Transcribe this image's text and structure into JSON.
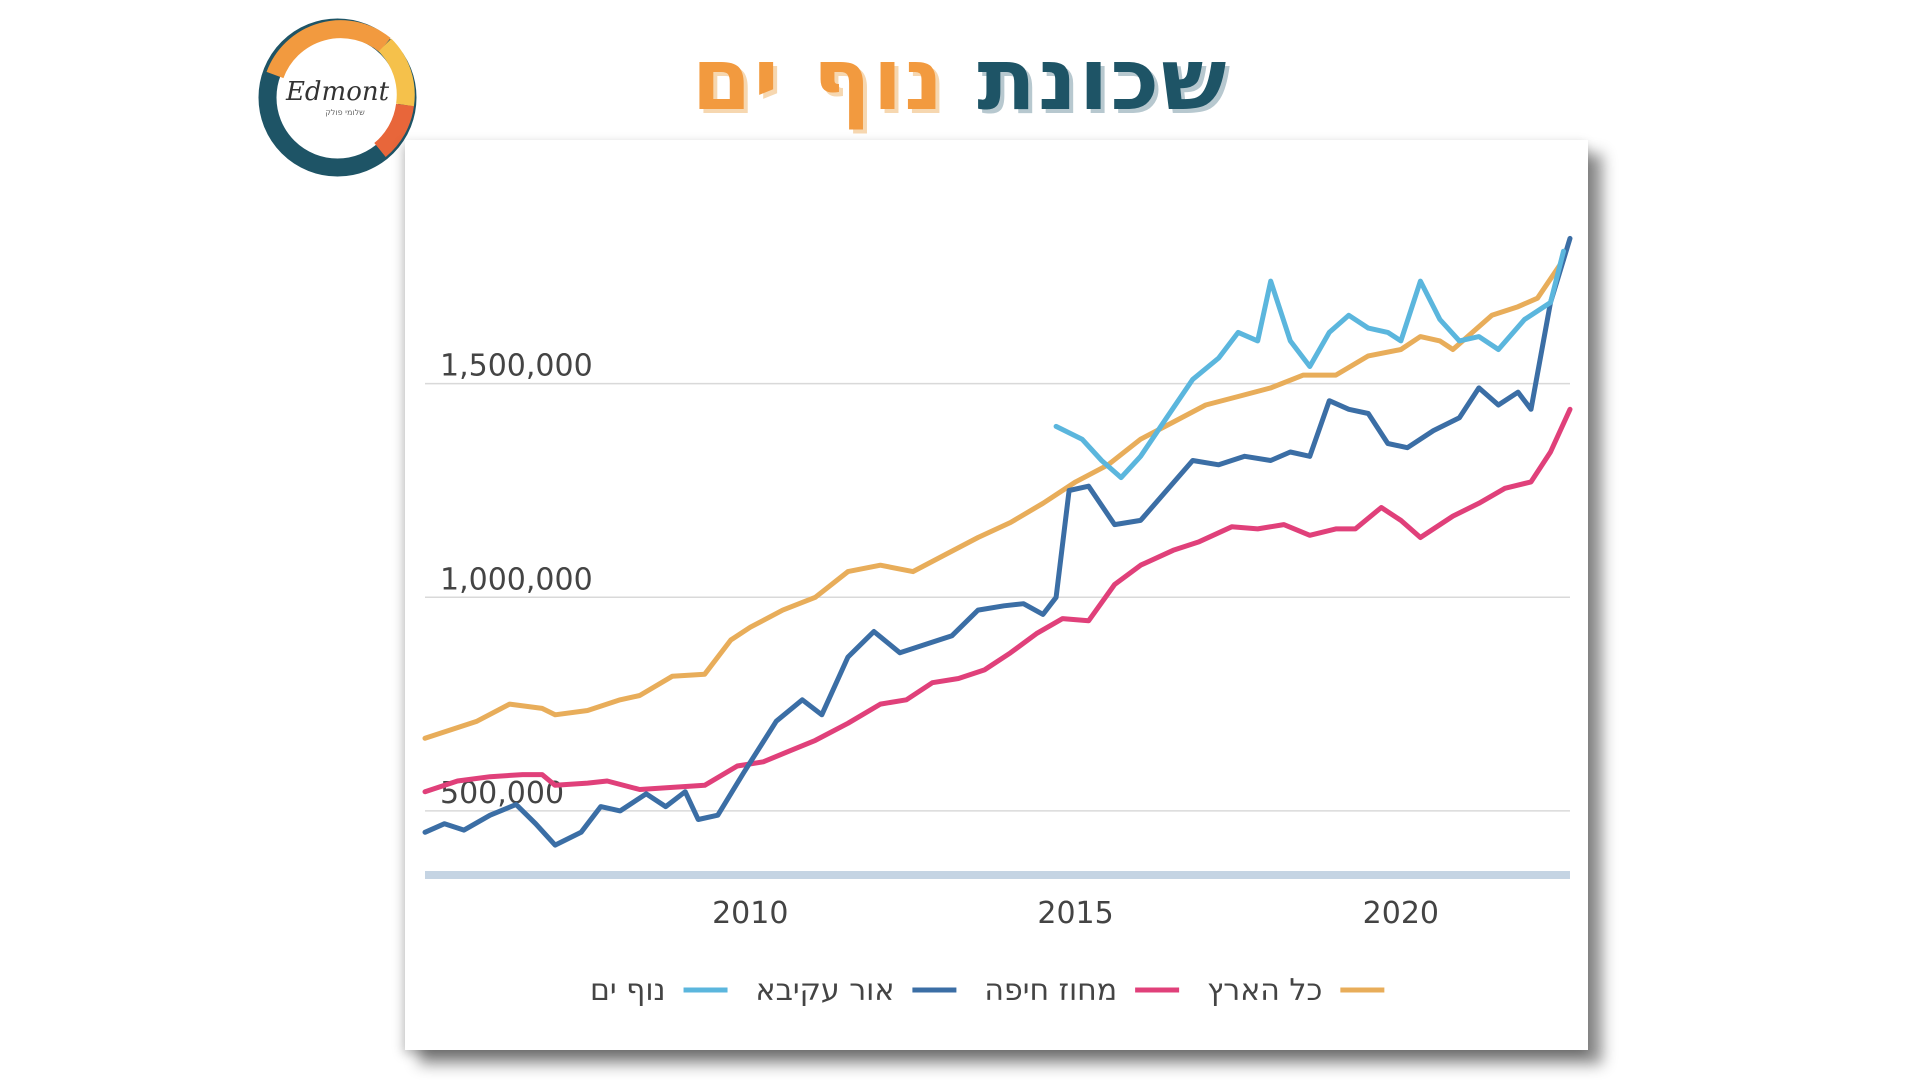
{
  "header": {
    "title_main": "שכונת",
    "title_accent": "נוף ים"
  },
  "logo": {
    "text": "Edmont",
    "subtext": "שלומי פולק",
    "colors": [
      "#1e5466",
      "#f29a3f",
      "#f5c14b",
      "#e8663a"
    ]
  },
  "chart_data": {
    "type": "line",
    "title": "",
    "xlabel": "",
    "ylabel": "",
    "xlim": [
      2005,
      2022.6
    ],
    "ylim": [
      350000,
      2000000
    ],
    "grid": true,
    "legend_position": "bottom",
    "x_ticks": [
      {
        "value": 2010,
        "label": "2010"
      },
      {
        "value": 2015,
        "label": "2015"
      },
      {
        "value": 2020,
        "label": "2020"
      }
    ],
    "y_ticks": [
      {
        "value": 500000,
        "label": "500,000"
      },
      {
        "value": 1000000,
        "label": "1,000,000"
      },
      {
        "value": 1500000,
        "label": "1,500,000"
      }
    ],
    "series": [
      {
        "name": "כל הארץ",
        "color": "#e8ad5a",
        "points": [
          [
            2005.0,
            670000
          ],
          [
            2005.8,
            710000
          ],
          [
            2006.3,
            750000
          ],
          [
            2006.8,
            740000
          ],
          [
            2007.0,
            725000
          ],
          [
            2007.5,
            735000
          ],
          [
            2008.0,
            760000
          ],
          [
            2008.3,
            770000
          ],
          [
            2008.8,
            815000
          ],
          [
            2009.3,
            820000
          ],
          [
            2009.7,
            900000
          ],
          [
            2010.0,
            930000
          ],
          [
            2010.5,
            970000
          ],
          [
            2011.0,
            1000000
          ],
          [
            2011.5,
            1060000
          ],
          [
            2012.0,
            1075000
          ],
          [
            2012.5,
            1060000
          ],
          [
            2013.0,
            1100000
          ],
          [
            2013.5,
            1140000
          ],
          [
            2014.0,
            1175000
          ],
          [
            2014.5,
            1220000
          ],
          [
            2015.0,
            1270000
          ],
          [
            2015.5,
            1310000
          ],
          [
            2016.0,
            1370000
          ],
          [
            2016.5,
            1410000
          ],
          [
            2017.0,
            1450000
          ],
          [
            2017.5,
            1470000
          ],
          [
            2018.0,
            1490000
          ],
          [
            2018.5,
            1520000
          ],
          [
            2019.0,
            1520000
          ],
          [
            2019.5,
            1565000
          ],
          [
            2020.0,
            1580000
          ],
          [
            2020.3,
            1610000
          ],
          [
            2020.6,
            1600000
          ],
          [
            2020.8,
            1580000
          ],
          [
            2021.1,
            1620000
          ],
          [
            2021.4,
            1660000
          ],
          [
            2021.8,
            1680000
          ],
          [
            2022.1,
            1700000
          ],
          [
            2022.5,
            1790000
          ]
        ]
      },
      {
        "name": "מחוז חיפה",
        "color": "#e0407a",
        "points": [
          [
            2005.0,
            545000
          ],
          [
            2005.5,
            570000
          ],
          [
            2006.0,
            580000
          ],
          [
            2006.5,
            585000
          ],
          [
            2006.8,
            585000
          ],
          [
            2007.0,
            560000
          ],
          [
            2007.5,
            565000
          ],
          [
            2007.8,
            570000
          ],
          [
            2008.3,
            550000
          ],
          [
            2008.8,
            555000
          ],
          [
            2009.3,
            560000
          ],
          [
            2009.8,
            605000
          ],
          [
            2010.2,
            615000
          ],
          [
            2010.6,
            640000
          ],
          [
            2011.0,
            665000
          ],
          [
            2011.5,
            705000
          ],
          [
            2012.0,
            750000
          ],
          [
            2012.4,
            760000
          ],
          [
            2012.8,
            800000
          ],
          [
            2013.2,
            810000
          ],
          [
            2013.6,
            830000
          ],
          [
            2014.0,
            870000
          ],
          [
            2014.4,
            915000
          ],
          [
            2014.8,
            950000
          ],
          [
            2015.2,
            945000
          ],
          [
            2015.6,
            1030000
          ],
          [
            2016.0,
            1075000
          ],
          [
            2016.5,
            1110000
          ],
          [
            2016.9,
            1130000
          ],
          [
            2017.4,
            1165000
          ],
          [
            2017.8,
            1160000
          ],
          [
            2018.2,
            1170000
          ],
          [
            2018.6,
            1145000
          ],
          [
            2019.0,
            1160000
          ],
          [
            2019.3,
            1160000
          ],
          [
            2019.7,
            1210000
          ],
          [
            2020.0,
            1180000
          ],
          [
            2020.3,
            1140000
          ],
          [
            2020.8,
            1190000
          ],
          [
            2021.2,
            1220000
          ],
          [
            2021.6,
            1255000
          ],
          [
            2022.0,
            1270000
          ],
          [
            2022.3,
            1340000
          ],
          [
            2022.6,
            1440000
          ]
        ]
      },
      {
        "name": "אור עקיבא",
        "color": "#3b6ea5",
        "points": [
          [
            2005.0,
            450000
          ],
          [
            2005.3,
            470000
          ],
          [
            2005.6,
            455000
          ],
          [
            2006.0,
            490000
          ],
          [
            2006.4,
            515000
          ],
          [
            2006.7,
            470000
          ],
          [
            2007.0,
            420000
          ],
          [
            2007.4,
            450000
          ],
          [
            2007.7,
            510000
          ],
          [
            2008.0,
            500000
          ],
          [
            2008.4,
            540000
          ],
          [
            2008.7,
            510000
          ],
          [
            2009.0,
            545000
          ],
          [
            2009.2,
            480000
          ],
          [
            2009.5,
            490000
          ],
          [
            2009.9,
            590000
          ],
          [
            2010.4,
            710000
          ],
          [
            2010.8,
            760000
          ],
          [
            2011.1,
            725000
          ],
          [
            2011.5,
            860000
          ],
          [
            2011.9,
            920000
          ],
          [
            2012.3,
            870000
          ],
          [
            2012.7,
            890000
          ],
          [
            2013.1,
            910000
          ],
          [
            2013.5,
            970000
          ],
          [
            2013.9,
            980000
          ],
          [
            2014.2,
            985000
          ],
          [
            2014.5,
            960000
          ],
          [
            2014.7,
            1000000
          ],
          [
            2014.9,
            1250000
          ],
          [
            2015.2,
            1260000
          ],
          [
            2015.6,
            1170000
          ],
          [
            2016.0,
            1180000
          ],
          [
            2016.4,
            1250000
          ],
          [
            2016.8,
            1320000
          ],
          [
            2017.2,
            1310000
          ],
          [
            2017.6,
            1330000
          ],
          [
            2018.0,
            1320000
          ],
          [
            2018.3,
            1340000
          ],
          [
            2018.6,
            1330000
          ],
          [
            2018.9,
            1460000
          ],
          [
            2019.2,
            1440000
          ],
          [
            2019.5,
            1430000
          ],
          [
            2019.8,
            1360000
          ],
          [
            2020.1,
            1350000
          ],
          [
            2020.5,
            1390000
          ],
          [
            2020.9,
            1420000
          ],
          [
            2021.2,
            1490000
          ],
          [
            2021.5,
            1450000
          ],
          [
            2021.8,
            1480000
          ],
          [
            2022.0,
            1440000
          ],
          [
            2022.3,
            1690000
          ],
          [
            2022.6,
            1840000
          ]
        ]
      },
      {
        "name": "נוף ים",
        "color": "#5bb6dd",
        "points": [
          [
            2014.7,
            1400000
          ],
          [
            2015.1,
            1370000
          ],
          [
            2015.4,
            1320000
          ],
          [
            2015.7,
            1280000
          ],
          [
            2016.0,
            1330000
          ],
          [
            2016.4,
            1420000
          ],
          [
            2016.8,
            1510000
          ],
          [
            2017.2,
            1560000
          ],
          [
            2017.5,
            1620000
          ],
          [
            2017.8,
            1600000
          ],
          [
            2018.0,
            1740000
          ],
          [
            2018.3,
            1600000
          ],
          [
            2018.6,
            1540000
          ],
          [
            2018.9,
            1620000
          ],
          [
            2019.2,
            1660000
          ],
          [
            2019.5,
            1630000
          ],
          [
            2019.8,
            1620000
          ],
          [
            2020.0,
            1600000
          ],
          [
            2020.3,
            1740000
          ],
          [
            2020.6,
            1650000
          ],
          [
            2020.9,
            1600000
          ],
          [
            2021.2,
            1610000
          ],
          [
            2021.5,
            1580000
          ],
          [
            2021.9,
            1650000
          ],
          [
            2022.3,
            1690000
          ],
          [
            2022.5,
            1810000
          ]
        ]
      }
    ],
    "legend_order": [
      "נוף ים",
      "אור עקיבא",
      "מחוז חיפה",
      "כל הארץ"
    ]
  }
}
